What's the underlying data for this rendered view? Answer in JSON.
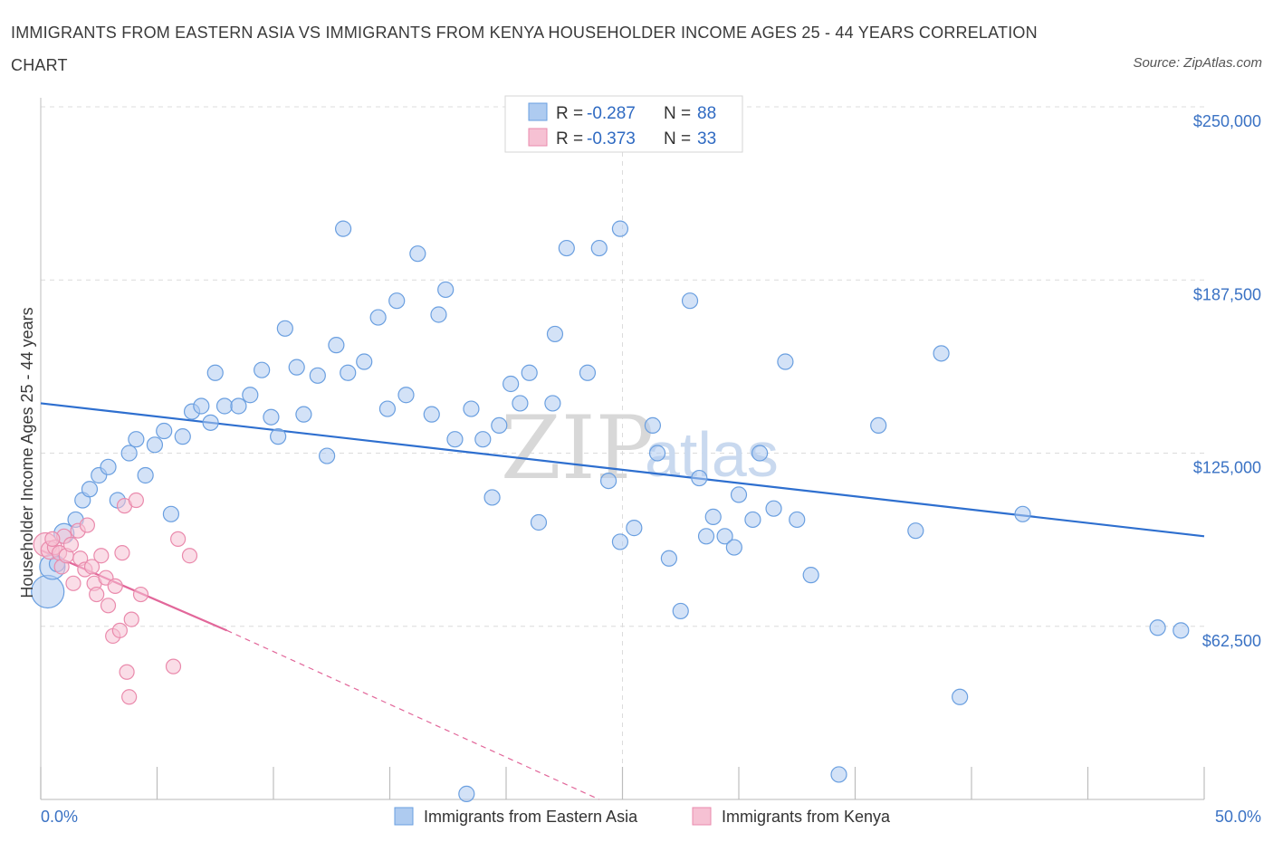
{
  "title": "IMMIGRANTS FROM EASTERN ASIA VS IMMIGRANTS FROM KENYA HOUSEHOLDER INCOME AGES 25 - 44 YEARS CORRELATION CHART",
  "source": "Source: ZipAtlas.com",
  "watermark": {
    "zip": "ZIP",
    "atlas": "atlas"
  },
  "legend": {
    "rows": [
      {
        "r_label": "R = ",
        "r_value": "-0.287",
        "n_label": "N = ",
        "n_value": "88"
      },
      {
        "r_label": "R = ",
        "r_value": "-0.373",
        "n_label": "N = ",
        "n_value": "33"
      }
    ]
  },
  "colors": {
    "eastern_asia": "#6a9fe0",
    "eastern_asia_fill": "#aecbf0",
    "eastern_asia_line": "#2e6fcf",
    "kenya": "#ea8aac",
    "kenya_fill": "#f6c1d3",
    "kenya_line": "#e2679a"
  },
  "chart_data": {
    "type": "scatter",
    "xlabel": "",
    "ylabel": "Householder Income Ages 25 - 44 years",
    "xlim": [
      0,
      50
    ],
    "ylim": [
      0,
      250000
    ],
    "x_tick_labels": [
      "0.0%",
      "50.0%"
    ],
    "y_tick_labels": [
      "$62,500",
      "$125,000",
      "$187,500",
      "$250,000"
    ],
    "y_ticks": [
      62500,
      125000,
      187500,
      250000
    ],
    "grid": true,
    "series": [
      {
        "name": "Immigrants from Eastern Asia",
        "points": [
          [
            0.3,
            75000
          ],
          [
            0.5,
            84000
          ],
          [
            1.0,
            96000
          ],
          [
            1.5,
            101000
          ],
          [
            1.8,
            108000
          ],
          [
            2.1,
            112000
          ],
          [
            2.5,
            117000
          ],
          [
            2.9,
            120000
          ],
          [
            3.3,
            108000
          ],
          [
            3.8,
            125000
          ],
          [
            4.1,
            130000
          ],
          [
            4.5,
            117000
          ],
          [
            4.9,
            128000
          ],
          [
            5.3,
            133000
          ],
          [
            5.6,
            103000
          ],
          [
            6.1,
            131000
          ],
          [
            6.5,
            140000
          ],
          [
            6.9,
            142000
          ],
          [
            7.3,
            136000
          ],
          [
            7.5,
            154000
          ],
          [
            7.9,
            142000
          ],
          [
            8.5,
            142000
          ],
          [
            9.0,
            146000
          ],
          [
            9.5,
            155000
          ],
          [
            9.9,
            138000
          ],
          [
            10.2,
            131000
          ],
          [
            10.5,
            170000
          ],
          [
            11.0,
            156000
          ],
          [
            11.3,
            139000
          ],
          [
            11.9,
            153000
          ],
          [
            12.3,
            124000
          ],
          [
            12.7,
            164000
          ],
          [
            13.2,
            154000
          ],
          [
            13.0,
            206000
          ],
          [
            13.9,
            158000
          ],
          [
            14.5,
            174000
          ],
          [
            14.9,
            141000
          ],
          [
            15.3,
            180000
          ],
          [
            15.7,
            146000
          ],
          [
            16.2,
            197000
          ],
          [
            16.8,
            139000
          ],
          [
            17.1,
            175000
          ],
          [
            17.4,
            184000
          ],
          [
            17.8,
            130000
          ],
          [
            18.5,
            141000
          ],
          [
            19.0,
            130000
          ],
          [
            19.4,
            109000
          ],
          [
            19.7,
            135000
          ],
          [
            20.2,
            150000
          ],
          [
            20.6,
            143000
          ],
          [
            21.0,
            154000
          ],
          [
            21.4,
            100000
          ],
          [
            22.0,
            143000
          ],
          [
            22.1,
            168000
          ],
          [
            22.6,
            199000
          ],
          [
            23.5,
            154000
          ],
          [
            24.0,
            199000
          ],
          [
            24.4,
            115000
          ],
          [
            24.9,
            93000
          ],
          [
            24.9,
            206000
          ],
          [
            25.5,
            98000
          ],
          [
            26.3,
            135000
          ],
          [
            26.5,
            125000
          ],
          [
            27.0,
            87000
          ],
          [
            27.5,
            68000
          ],
          [
            27.9,
            180000
          ],
          [
            28.3,
            116000
          ],
          [
            28.6,
            95000
          ],
          [
            28.9,
            102000
          ],
          [
            29.4,
            95000
          ],
          [
            29.8,
            91000
          ],
          [
            30.0,
            110000
          ],
          [
            30.6,
            101000
          ],
          [
            30.9,
            125000
          ],
          [
            31.5,
            105000
          ],
          [
            32.0,
            158000
          ],
          [
            32.5,
            101000
          ],
          [
            33.1,
            81000
          ],
          [
            34.3,
            9000
          ],
          [
            36.0,
            135000
          ],
          [
            37.6,
            97000
          ],
          [
            38.7,
            161000
          ],
          [
            39.5,
            37000
          ],
          [
            42.2,
            103000
          ],
          [
            48.0,
            62000
          ],
          [
            49.0,
            61000
          ],
          [
            0.7,
            85000
          ],
          [
            18.3,
            2000
          ]
        ],
        "trend": {
          "x": [
            0,
            50
          ],
          "y": [
            143000,
            95000
          ]
        }
      },
      {
        "name": "Immigrants from Kenya",
        "points": [
          [
            0.2,
            92000
          ],
          [
            0.4,
            90000
          ],
          [
            0.6,
            91000
          ],
          [
            0.8,
            89000
          ],
          [
            0.9,
            84000
          ],
          [
            1.0,
            95000
          ],
          [
            1.1,
            88000
          ],
          [
            1.3,
            92000
          ],
          [
            1.4,
            78000
          ],
          [
            1.6,
            97000
          ],
          [
            1.7,
            87000
          ],
          [
            1.9,
            83000
          ],
          [
            2.0,
            99000
          ],
          [
            2.2,
            84000
          ],
          [
            2.3,
            78000
          ],
          [
            2.4,
            74000
          ],
          [
            2.6,
            88000
          ],
          [
            2.8,
            80000
          ],
          [
            2.9,
            70000
          ],
          [
            3.1,
            59000
          ],
          [
            3.2,
            77000
          ],
          [
            3.4,
            61000
          ],
          [
            3.5,
            89000
          ],
          [
            3.6,
            106000
          ],
          [
            3.7,
            46000
          ],
          [
            3.8,
            37000
          ],
          [
            3.9,
            65000
          ],
          [
            4.1,
            108000
          ],
          [
            4.3,
            74000
          ],
          [
            5.7,
            48000
          ],
          [
            5.9,
            94000
          ],
          [
            6.4,
            88000
          ],
          [
            0.5,
            94000
          ]
        ],
        "trend": {
          "x": [
            0,
            8.0
          ],
          "y": [
            90000,
            61000
          ]
        },
        "trend_extension": {
          "x": [
            8.0,
            24.0
          ],
          "y": [
            61000,
            0
          ]
        }
      }
    ]
  }
}
